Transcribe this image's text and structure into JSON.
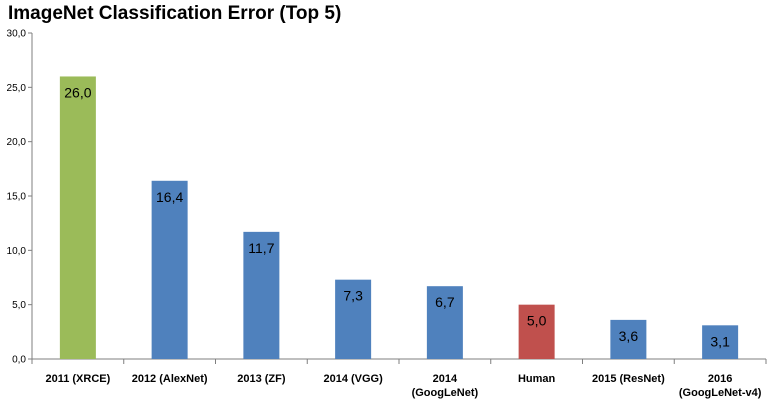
{
  "chart_data": {
    "type": "bar",
    "title": "ImageNet Classification Error (Top 5)",
    "categories": [
      [
        "2011 (XRCE)"
      ],
      [
        "2012 (AlexNet)"
      ],
      [
        "2013 (ZF)"
      ],
      [
        "2014 (VGG)"
      ],
      [
        "2014",
        "(GoogLeNet)"
      ],
      [
        "Human"
      ],
      [
        "2015 (ResNet)"
      ],
      [
        "2016",
        "(GoogLeNet-v4)"
      ]
    ],
    "values": [
      26.0,
      16.4,
      11.7,
      7.3,
      6.7,
      5.0,
      3.6,
      3.1
    ],
    "value_labels": [
      "26,0",
      "16,4",
      "11,7",
      "7,3",
      "6,7",
      "5,0",
      "3,6",
      "3,1"
    ],
    "bar_colors": [
      "#9bbb59",
      "#4f81bd",
      "#4f81bd",
      "#4f81bd",
      "#4f81bd",
      "#c0504d",
      "#4f81bd",
      "#4f81bd"
    ],
    "ylim": [
      0,
      30
    ],
    "yticks": [
      0,
      5,
      10,
      15,
      20,
      25,
      30
    ],
    "ytick_labels": [
      "0,0",
      "5,0",
      "10,0",
      "15,0",
      "20,0",
      "25,0",
      "30,0"
    ],
    "grid": false,
    "xlabel": "",
    "ylabel": ""
  }
}
